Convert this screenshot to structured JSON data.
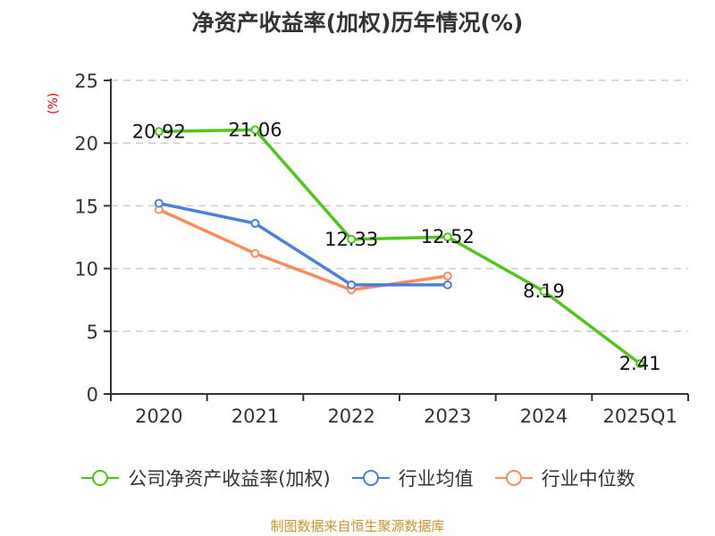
{
  "title": "净资产收益率(加权)历年情况(%)",
  "source": "制图数据来自恒生聚源数据库",
  "chart_data": {
    "type": "line",
    "title": "净资产收益率(加权)历年情况(%)",
    "ylabel": "(%)",
    "xlabel": "",
    "ylim": [
      0,
      25
    ],
    "yticks": [
      0,
      5,
      10,
      15,
      20,
      25
    ],
    "grid": true,
    "legend_position": "bottom",
    "categories": [
      "2020",
      "2021",
      "2022",
      "2023",
      "2024",
      "2025Q1"
    ],
    "series": [
      {
        "name": "公司净资产收益率(加权)",
        "color": "#52c41a",
        "values": [
          20.92,
          21.06,
          12.33,
          12.52,
          8.19,
          2.41
        ],
        "labels": [
          "20.92",
          "21.06",
          "12.33",
          "12.52",
          "8.19",
          "2.41"
        ]
      },
      {
        "name": "行业均值",
        "color": "#4a7fe0",
        "values": [
          15.2,
          13.6,
          8.7,
          8.7,
          null,
          null
        ]
      },
      {
        "name": "行业中位数",
        "color": "#ff8a5b",
        "values": [
          14.7,
          11.2,
          8.3,
          9.4,
          null,
          null
        ]
      }
    ]
  }
}
